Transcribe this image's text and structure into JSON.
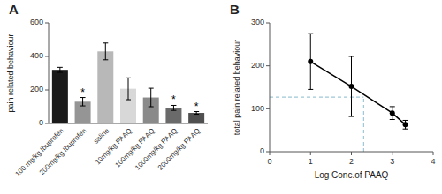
{
  "chart_data": [
    {
      "type": "bar",
      "title": "A",
      "categories": [
        "100 mg/kg Ibuprofen",
        "200mg/kg Ibuprofen",
        "saline",
        "10mg/kg PAAQ",
        "100mg/kg PAAQ",
        "1000mg/kg PAAQ",
        "2000mg/kg PAAQ"
      ],
      "values": [
        320,
        130,
        430,
        207,
        155,
        93,
        63
      ],
      "errors": [
        15,
        25,
        50,
        65,
        55,
        15,
        8
      ],
      "colors": [
        "#1a1a1a",
        "#959595",
        "#b8b8b8",
        "#d8d8d8",
        "#8a8a8a",
        "#6a6a6a",
        "#505050"
      ],
      "y_label": "pain related behaviour",
      "ylim": [
        0,
        600
      ],
      "yticks": [
        0,
        200,
        400,
        600
      ],
      "annotations": [
        {
          "text": "*",
          "category": "200mg/kg Ibuprofen"
        },
        {
          "text": "*",
          "category": "1000mg/kg PAAQ"
        },
        {
          "text": "*",
          "category": "2000mg/kg PAAQ"
        }
      ]
    },
    {
      "type": "line",
      "title": "B",
      "x": [
        1.0,
        2.0,
        3.0,
        3.32
      ],
      "values": [
        210,
        152,
        90,
        63
      ],
      "errors": [
        65,
        70,
        15,
        10
      ],
      "color": "black",
      "marker": "circle",
      "line_style": "solid",
      "x_label": "Log Conc.of PAAQ",
      "y_label": "total pain related behaviour",
      "xlim": [
        0,
        4
      ],
      "xticks": [
        0,
        1,
        2,
        3,
        4
      ],
      "ylim": [
        0,
        300
      ],
      "yticks": [
        0,
        100,
        200,
        300
      ],
      "reference_lines": [
        {
          "x": 2.3,
          "y": 127,
          "color": "#a0c8d8",
          "line_style": "dashed"
        }
      ]
    }
  ]
}
